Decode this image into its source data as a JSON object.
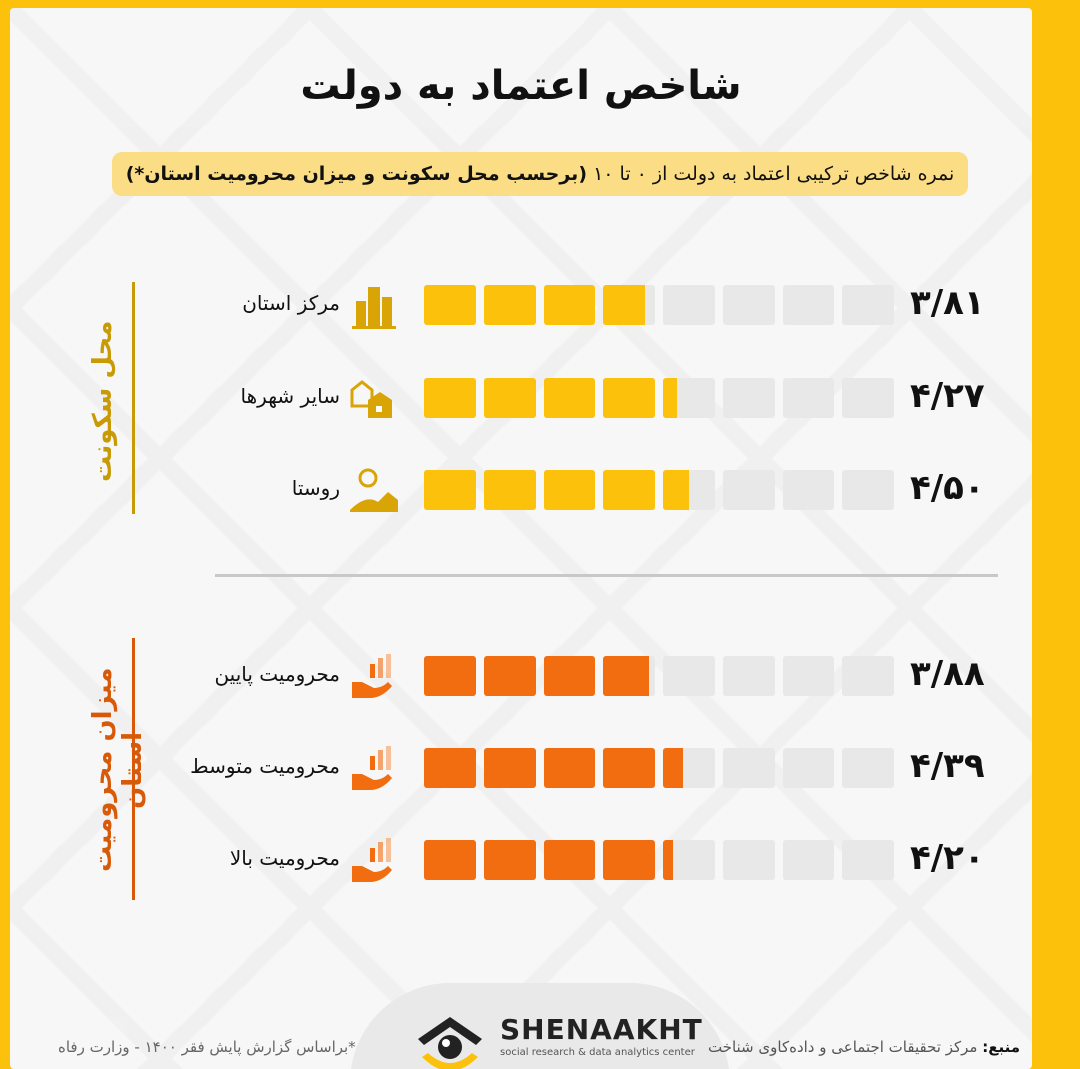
{
  "title": "شاخص اعتماد به دولت",
  "subtitle_plain": "نمره شاخص ترکیبی اعتماد به دولت از ۰ تا ۱۰",
  "subtitle_bold": "(برحسب محل سکونت و میزان محرومیت استان*)",
  "footer": {
    "note": "*براساس گزارش پایش فقر ۱۴۰۰ - وزارت رفاه",
    "source_label": "منبع:",
    "source": "مرکز تحقیقات اجتماعی و داده‌کاوی شناخت",
    "logo_name": "SHENAAKHT",
    "logo_tagline": "social research & data analytics center"
  },
  "chart_data": {
    "type": "bar",
    "title": "شاخص اعتماد به دولت",
    "scale_segments": 8,
    "groups": [
      {
        "name": "محل سکونت",
        "color": "#fcc10a",
        "categories": [
          "مرکز استان",
          "سایر شهرها",
          "روستا"
        ],
        "icons": [
          "city-buildings-icon",
          "houses-icon",
          "village-icon"
        ],
        "values": [
          3.81,
          4.27,
          4.5
        ],
        "labels": [
          "۳/۸۱",
          "۴/۲۷",
          "۴/۵۰"
        ]
      },
      {
        "name": "میزان محرومیت استان",
        "color": "#f26d0f",
        "categories": [
          "محرومیت پایین",
          "محرومیت متوسط",
          "محرومیت بالا"
        ],
        "icons": [
          "hand-chart-icon",
          "hand-chart-icon",
          "hand-chart-icon"
        ],
        "values": [
          3.88,
          4.39,
          4.2
        ],
        "labels": [
          "۳/۸۸",
          "۴/۳۹",
          "۴/۲۰"
        ]
      }
    ]
  }
}
